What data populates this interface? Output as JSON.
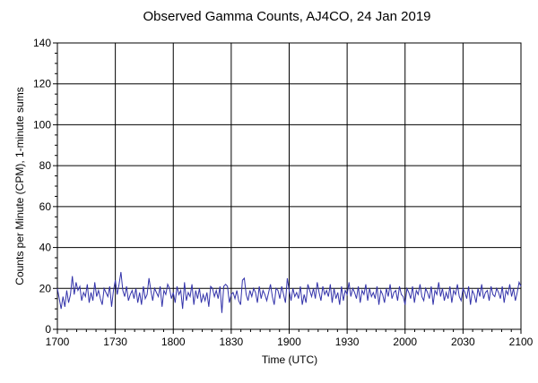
{
  "chart_data": {
    "type": "line",
    "title": "Observed Gamma Counts, AJ4CO, 24 Jan 2019",
    "xlabel": "Time (UTC)",
    "ylabel": "Counts per Minute (CPM), 1-minute sums",
    "x_tick_labels": [
      "1700",
      "1730",
      "1800",
      "1830",
      "1900",
      "1930",
      "2000",
      "2030",
      "2100"
    ],
    "y_ticks": [
      0,
      20,
      40,
      60,
      80,
      100,
      120,
      140
    ],
    "xlim_minutes_from_1700": [
      0,
      240
    ],
    "ylim": [
      0,
      140
    ],
    "grid": true,
    "line_color": "#3333aa",
    "series": [
      {
        "values": [
          20,
          15,
          10,
          16,
          11,
          19,
          13,
          17,
          26,
          17,
          23,
          19,
          21,
          14,
          18,
          16,
          22,
          13,
          18,
          14,
          23,
          16,
          19,
          15,
          12,
          20,
          18,
          16,
          21,
          11,
          19,
          24,
          17,
          22,
          28,
          19,
          16,
          21,
          14,
          17,
          19,
          15,
          20,
          13,
          18,
          12,
          21,
          15,
          17,
          25,
          19,
          14,
          20,
          18,
          16,
          21,
          11,
          19,
          17,
          22,
          20,
          15,
          18,
          13,
          21,
          17,
          19,
          10,
          23,
          14,
          18,
          16,
          22,
          12,
          19,
          15,
          20,
          13,
          17,
          14,
          18,
          11,
          21,
          20,
          16,
          19,
          15,
          21,
          8,
          21,
          22,
          21,
          13,
          17,
          18,
          15,
          19,
          14,
          12,
          24,
          25,
          17,
          14,
          19,
          16,
          20,
          18,
          13,
          21,
          15,
          19,
          17,
          14,
          18,
          22,
          16,
          12,
          20,
          19,
          15,
          21,
          17,
          13,
          25,
          19,
          14,
          20,
          16,
          18,
          15,
          21,
          12,
          17,
          13,
          22,
          19,
          16,
          20,
          15,
          23,
          18,
          14,
          21,
          17,
          19,
          16,
          22,
          13,
          20,
          15,
          18,
          12,
          21,
          14,
          19,
          17,
          23,
          16,
          20,
          18,
          15,
          21,
          13,
          19,
          17,
          22,
          14,
          20,
          16,
          18,
          15,
          21,
          12,
          19,
          17,
          13,
          20,
          16,
          22,
          15,
          18,
          19,
          14,
          21,
          17,
          16,
          12,
          20,
          18,
          15,
          21,
          13,
          19,
          17,
          22,
          16,
          14,
          20,
          18,
          15,
          21,
          12,
          19,
          17,
          23,
          16,
          20,
          14,
          18,
          15,
          21,
          13,
          19,
          17,
          22,
          16,
          14,
          20,
          18,
          15,
          21,
          12,
          19,
          17,
          13,
          20,
          16,
          22,
          15,
          18,
          19,
          14,
          21,
          17,
          16,
          20,
          18,
          15,
          21,
          13,
          19,
          17,
          22,
          16,
          20,
          14,
          18,
          23,
          21
        ]
      }
    ]
  }
}
